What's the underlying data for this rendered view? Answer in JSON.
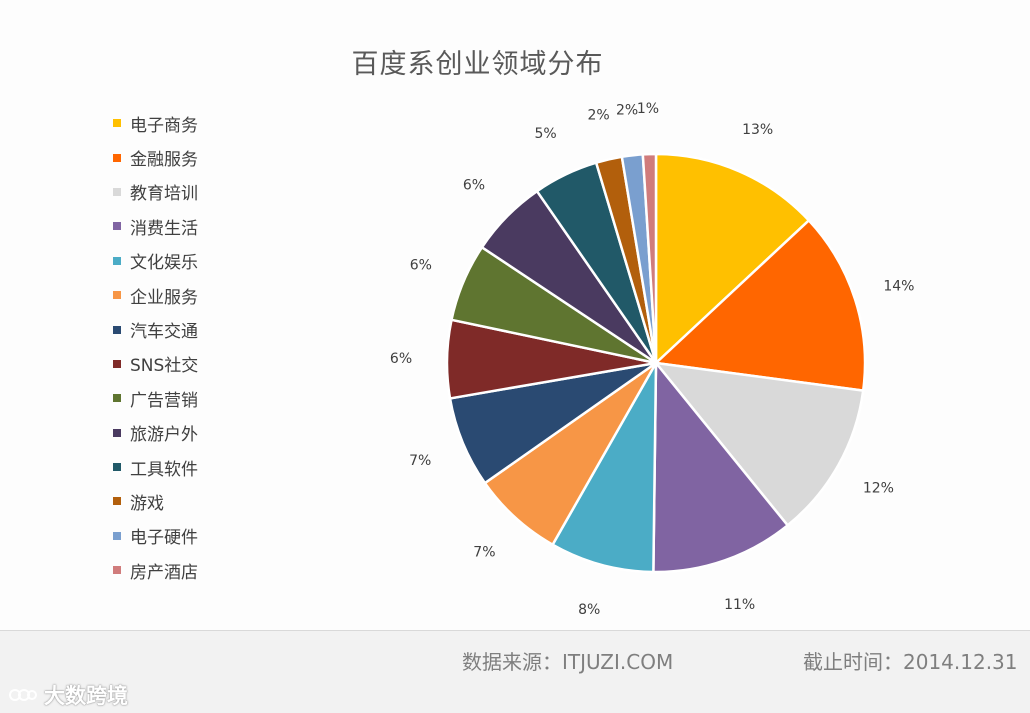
{
  "chart_data": {
    "type": "pie",
    "title": "百度系创业领域分布",
    "slices": [
      {
        "label": "电子商务",
        "value": 13,
        "display": "13%",
        "color": "#FFC000"
      },
      {
        "label": "金融服务",
        "value": 14,
        "display": "14%",
        "color": "#FF6600"
      },
      {
        "label": "教育培训",
        "value": 12,
        "display": "12%",
        "color": "#D9D9D9"
      },
      {
        "label": "消费生活",
        "value": 11,
        "display": "11%",
        "color": "#8064A2"
      },
      {
        "label": "文化娱乐",
        "value": 8,
        "display": "8%",
        "color": "#4BACC6"
      },
      {
        "label": "企业服务",
        "value": 7,
        "display": "7%",
        "color": "#F79646"
      },
      {
        "label": "汽车交通",
        "value": 7,
        "display": "7%",
        "color": "#2A4A72"
      },
      {
        "label": "SNS社交",
        "value": 6,
        "display": "6%",
        "color": "#7F2A28"
      },
      {
        "label": "广告营销",
        "value": 6,
        "display": "6%",
        "color": "#5F7530"
      },
      {
        "label": "旅游户外",
        "value": 6,
        "display": "6%",
        "color": "#4A3A60"
      },
      {
        "label": "工具软件",
        "value": 5,
        "display": "5%",
        "color": "#215968"
      },
      {
        "label": "游戏",
        "value": 2,
        "display": "2%",
        "color": "#B25F0C"
      },
      {
        "label": "电子硬件",
        "value": 1.6,
        "display": "2%",
        "color": "#7A9FCF"
      },
      {
        "label": "房产酒店",
        "value": 1,
        "display": "1%",
        "color": "#D07C7C"
      }
    ],
    "legend_position": "left"
  },
  "footer": {
    "source": "数据来源：ITJUZI.COM",
    "cutoff": "截止时间：2014.12.31",
    "watermark": "大数跨境"
  }
}
